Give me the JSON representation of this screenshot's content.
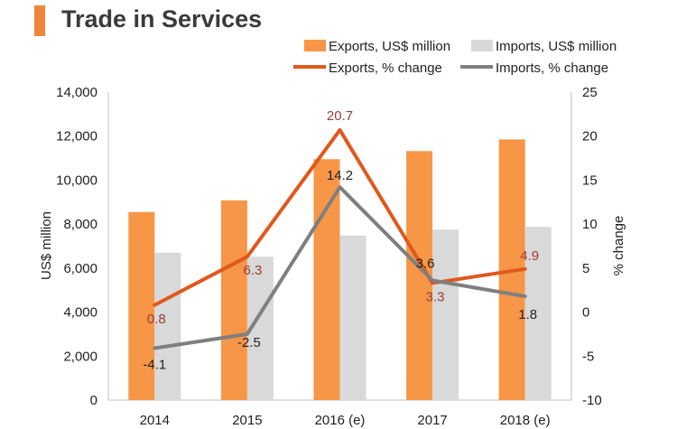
{
  "title": "Trade in Services",
  "colors": {
    "title_accent": "#f0843a",
    "exports_bar": "#f79646",
    "imports_bar": "#d9d9d9",
    "exports_line": "#e0581c",
    "imports_line": "#7f7f7f",
    "exports_label": "#9c3a3a",
    "imports_label": "#222222"
  },
  "chart_data": {
    "type": "bar",
    "combo": "bar+line",
    "categories": [
      "2014",
      "2015",
      "2016 (e)",
      "2017",
      "2018 (e)"
    ],
    "ylabel": "US$ million",
    "y2label": "% change",
    "ylim": [
      0,
      14000
    ],
    "y_ticks": [
      "0",
      "2,000",
      "4,000",
      "6,000",
      "8,000",
      "10,000",
      "12,000",
      "14,000"
    ],
    "y2lim": [
      -10,
      25
    ],
    "y2_ticks": [
      "-10",
      "-5",
      "0",
      "5",
      "10",
      "15",
      "20",
      "25"
    ],
    "legend_position": "top-right",
    "grid": false,
    "series": [
      {
        "name": "Exports, US$ million",
        "kind": "bar",
        "axis": "left",
        "values": [
          8550,
          9080,
          10950,
          11320,
          11850
        ]
      },
      {
        "name": "Imports, US$ million",
        "kind": "bar",
        "axis": "left",
        "values": [
          6700,
          6520,
          7480,
          7750,
          7880
        ]
      },
      {
        "name": "Exports, % change",
        "kind": "line",
        "axis": "right",
        "values": [
          0.8,
          6.3,
          20.7,
          3.3,
          4.9
        ],
        "labels": [
          "0.8",
          "6.3",
          "20.7",
          "3.3",
          "4.9"
        ]
      },
      {
        "name": "Imports, % change",
        "kind": "line",
        "axis": "right",
        "values": [
          -4.1,
          -2.5,
          14.2,
          3.6,
          1.8
        ],
        "labels": [
          "-4.1",
          "-2.5",
          "14.2",
          "3.6",
          "1.8"
        ]
      }
    ]
  }
}
